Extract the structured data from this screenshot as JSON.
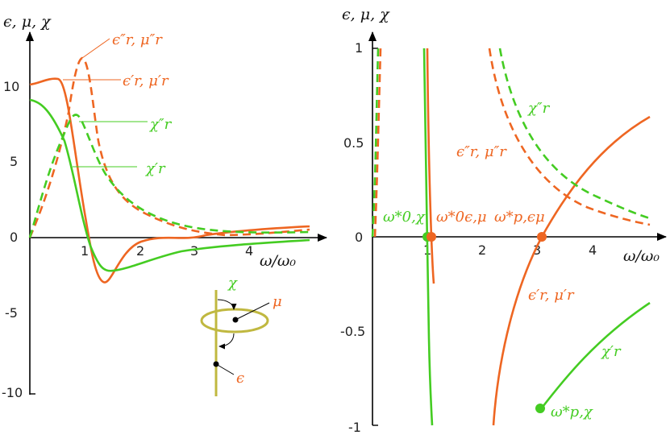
{
  "chart_data": [
    {
      "type": "line",
      "xlabel": "ω/ω₀",
      "ylabel": "ϵ, μ, χ",
      "xlim": [
        0,
        5.3
      ],
      "ylim": [
        -10,
        12.5
      ],
      "x_ticks": [
        "1",
        "2",
        "3",
        "4"
      ],
      "y_ticks": [
        "10",
        "5",
        "0",
        "-5",
        "-10"
      ],
      "colors": {
        "eps_mu": "#ee6622",
        "chi": "#44cc22"
      },
      "series": [
        {
          "name": "ϵ′r, μ′r",
          "style": "solid",
          "color": "#ee6622",
          "x": [
            0,
            0.5,
            1.0,
            1.4,
            2.0,
            3.0,
            5.3
          ],
          "y": [
            10,
            10.5,
            -0.5,
            -3.0,
            -1.0,
            0.0,
            0.6
          ]
        },
        {
          "name": "ϵ″r, μ″r",
          "style": "dashed",
          "color": "#ee6622",
          "x": [
            0,
            0.5,
            0.95,
            1.5,
            3.0,
            5.3
          ],
          "y": [
            0,
            6.0,
            11.7,
            2.5,
            0.1,
            0.2
          ]
        },
        {
          "name": "χ″r",
          "style": "dashed",
          "color": "#44cc22",
          "x": [
            0,
            0.5,
            0.85,
            1.5,
            3.0,
            5.3
          ],
          "y": [
            0,
            6.0,
            8.2,
            3.0,
            0.1,
            0.25
          ]
        },
        {
          "name": "χ′r",
          "style": "solid",
          "color": "#44cc22",
          "x": [
            0,
            0.5,
            1.0,
            1.5,
            3.0,
            5.3
          ],
          "y": [
            9.0,
            7.8,
            0.0,
            -2.2,
            -0.6,
            -0.2
          ]
        }
      ],
      "labels": {
        "eps_mu_imag": "ϵ″r, μ″r",
        "eps_mu_real": "ϵ′r, μ′r",
        "chi_imag": "χ″r",
        "chi_real": "χ′r"
      },
      "inset": {
        "chi": "χ",
        "mu": "μ",
        "epsilon": "ϵ"
      }
    },
    {
      "type": "line",
      "xlabel": "ω/ω₀",
      "ylabel": "ϵ, μ, χ",
      "xlim": [
        0,
        5.0
      ],
      "ylim": [
        -1,
        1
      ],
      "x_ticks": [
        "1",
        "2",
        "3",
        "4"
      ],
      "y_ticks": [
        "1",
        "0.5",
        "0",
        "-0.5",
        "-1"
      ],
      "series": [
        {
          "name": "ϵ′r, μ′r",
          "style": "solid",
          "color": "#ee6622",
          "x": [
            1.03,
            1.5,
            2.0,
            3.0,
            4.0,
            5.0
          ],
          "y": [
            1.0,
            0.1,
            -1.0,
            0.0,
            0.45,
            0.65
          ]
        },
        {
          "name": "ϵ″r, μ″r",
          "style": "dashed",
          "color": "#ee6622",
          "x": [
            0.05,
            2.15,
            3.0,
            4.0,
            5.0
          ],
          "y": [
            1.0,
            1.0,
            0.45,
            0.2,
            0.07
          ]
        },
        {
          "name": "χ″r",
          "style": "dashed",
          "color": "#44cc22",
          "x": [
            0.0,
            2.3,
            3.0,
            4.0,
            5.0
          ],
          "y": [
            1.0,
            1.0,
            0.55,
            0.25,
            0.1
          ]
        },
        {
          "name": "χ′r",
          "style": "solid",
          "color": "#44cc22",
          "x": [
            0.97,
            1.05,
            3.0,
            4.0,
            5.0
          ],
          "y": [
            1.0,
            -1.0,
            -0.9,
            -0.6,
            -0.35
          ]
        }
      ],
      "points": [
        {
          "label": "ω*0,χ",
          "x": 1.0,
          "y": 0,
          "color": "#44cc22"
        },
        {
          "label": "ω*0ϵ,μ",
          "x": 1.05,
          "y": 0,
          "color": "#ee6622"
        },
        {
          "label": "ω*p,ϵμ",
          "x": 3.05,
          "y": 0,
          "color": "#ee6622"
        },
        {
          "label": "ω*p,χ",
          "x": 3.05,
          "y": -0.91,
          "color": "#44cc22"
        }
      ],
      "labels": {
        "chi_imag": "χ″r",
        "eps_mu_imag": "ϵ″r, μ″r",
        "eps_mu_real": "ϵ′r, μ′r",
        "chi_real": "χ′r"
      }
    }
  ]
}
